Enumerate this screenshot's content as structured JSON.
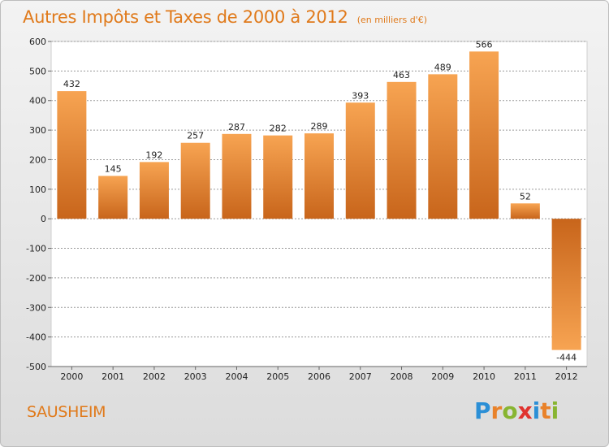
{
  "header": {
    "title": "Autres Impôts et Taxes de 2000 à 2012",
    "unit_note": "(en milliers d'€)"
  },
  "footer": {
    "commune": "SAUSHEIM",
    "brand": {
      "letters": [
        "P",
        "r",
        "o",
        "x",
        "i",
        "t",
        "i"
      ],
      "colors": [
        "#2b8fd6",
        "#e9822a",
        "#88b531",
        "#e0322e",
        "#2b8fd6",
        "#e9822a",
        "#88b531"
      ]
    }
  },
  "colors": {
    "bar_light": "#f7a452",
    "bar_dark": "#c8651b",
    "grid": "#9a9a9a",
    "plot_bg": "#ffffff"
  },
  "chart_data": {
    "type": "bar",
    "categories": [
      "2000",
      "2001",
      "2002",
      "2003",
      "2004",
      "2005",
      "2006",
      "2007",
      "2008",
      "2009",
      "2010",
      "2011",
      "2012"
    ],
    "values": [
      432,
      145,
      192,
      257,
      287,
      282,
      289,
      393,
      463,
      489,
      566,
      52,
      -444
    ],
    "value_labels": [
      "432",
      "145",
      "192",
      "257",
      "287",
      "282",
      "289",
      "393",
      "463",
      "489",
      "566",
      "52",
      "-444"
    ],
    "ylim": [
      -500,
      600
    ],
    "yticks": [
      600,
      500,
      400,
      300,
      200,
      100,
      0,
      -100,
      -200,
      -300,
      -400,
      -500
    ],
    "ytick_labels": [
      "600",
      "500",
      "400",
      "300",
      "200",
      "100",
      "0",
      "-100",
      "-200",
      "-300",
      "-400",
      "-500"
    ],
    "grid": true,
    "title": "Autres Impôts et Taxes de 2000 à 2012",
    "xlabel": "",
    "ylabel": ""
  }
}
